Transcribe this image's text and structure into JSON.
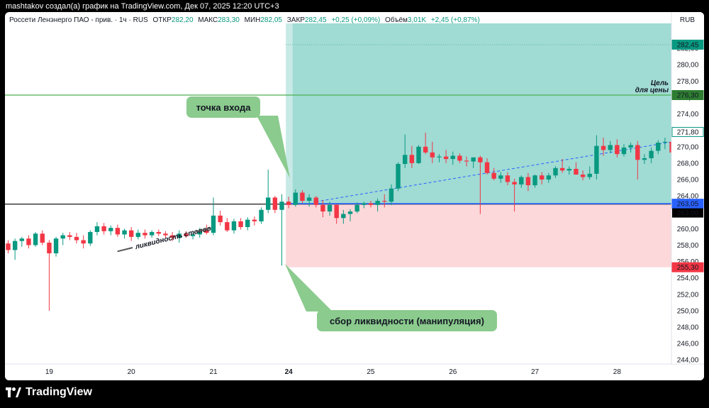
{
  "credit": "mashtakov создал(а) график на TradingView.com, Дек 07, 2025 12:20 UTC+3",
  "legend": {
    "instrument": "Россети Ленэнерго ПАО - прив. · 1ч · RUS",
    "open_label": "ОТКР",
    "open": "282,20",
    "high_label": "МАКС",
    "high": "283,30",
    "low_label": "МИН",
    "low": "282,05",
    "close_label": "ЗАКР",
    "close": "282,45",
    "change": "+0,25 (+0,09%)",
    "volume_label": "Объём",
    "volume": "3,01K",
    "vol_change": "+2,45 (+0,87%)"
  },
  "currency": "RUB",
  "logo_text": "TradingView",
  "colors": {
    "up": "#089981",
    "down": "#f23645",
    "profit_zone": "#a0dbd4",
    "loss_zone": "#fcd8da",
    "target_line": "#4caf50",
    "entry_line": "#2962ff",
    "callout": "#8bcb8e"
  },
  "chart_data": {
    "type": "candlestick",
    "ylim": [
      243.5,
      284
    ],
    "y_ticks": [
      "244,00",
      "246,00",
      "248,00",
      "250,00",
      "252,00",
      "254,00",
      "256,00",
      "258,00",
      "260,00",
      "262,00",
      "264,00",
      "266,00",
      "268,00",
      "270,00",
      "272,00",
      "274,00",
      "276,00",
      "278,00",
      "280,00",
      "282,00"
    ],
    "y_tick_values": [
      244,
      246,
      248,
      250,
      252,
      254,
      256,
      258,
      260,
      262,
      264,
      266,
      268,
      270,
      272,
      274,
      276,
      278,
      280,
      282
    ],
    "x_ticks": [
      {
        "label": "19",
        "index": 6
      },
      {
        "label": "20",
        "index": 18
      },
      {
        "label": "21",
        "index": 30
      },
      {
        "label": "24",
        "index": 41,
        "bold": true
      },
      {
        "label": "25",
        "index": 53
      },
      {
        "label": "26",
        "index": 65
      },
      {
        "label": "27",
        "index": 77
      },
      {
        "label": "28",
        "index": 89
      }
    ],
    "candles": [
      [
        258.2,
        258.6,
        257.0,
        257.4
      ],
      [
        257.4,
        258.8,
        256.2,
        258.5
      ],
      [
        258.5,
        259.0,
        257.8,
        258.8
      ],
      [
        258.8,
        259.2,
        257.6,
        258.0
      ],
      [
        258.0,
        259.6,
        257.8,
        259.4
      ],
      [
        259.4,
        259.8,
        258.0,
        258.3
      ],
      [
        258.3,
        258.6,
        250.0,
        257.0
      ],
      [
        257.0,
        259.0,
        256.6,
        258.8
      ],
      [
        258.8,
        259.5,
        258.0,
        259.2
      ],
      [
        259.2,
        259.6,
        258.6,
        259.0
      ],
      [
        259.0,
        259.5,
        258.2,
        258.6
      ],
      [
        258.6,
        259.2,
        257.6,
        258.2
      ],
      [
        258.2,
        259.8,
        257.9,
        259.6
      ],
      [
        259.6,
        260.8,
        259.2,
        260.3
      ],
      [
        260.3,
        260.7,
        259.3,
        259.7
      ],
      [
        259.7,
        260.4,
        259.2,
        260.1
      ],
      [
        260.1,
        260.5,
        259.0,
        259.3
      ],
      [
        259.3,
        260.0,
        258.8,
        259.8
      ],
      [
        259.8,
        260.2,
        258.5,
        259.0
      ],
      [
        259.0,
        259.9,
        258.7,
        259.5
      ],
      [
        259.5,
        259.9,
        258.8,
        259.2
      ],
      [
        259.2,
        259.8,
        258.9,
        259.6
      ],
      [
        259.6,
        259.9,
        259.1,
        259.4
      ],
      [
        259.4,
        259.7,
        258.9,
        259.2
      ],
      [
        259.2,
        259.6,
        258.5,
        258.9
      ],
      [
        258.9,
        259.8,
        258.3,
        259.4
      ],
      [
        259.4,
        259.7,
        258.9,
        259.1
      ],
      [
        259.1,
        259.5,
        258.7,
        259.3
      ],
      [
        259.3,
        260.1,
        258.9,
        259.8
      ],
      [
        259.8,
        260.5,
        259.3,
        259.5
      ],
      [
        259.5,
        263.8,
        259.2,
        261.6
      ],
      [
        261.6,
        262.2,
        260.4,
        260.8
      ],
      [
        260.8,
        261.3,
        259.6,
        259.8
      ],
      [
        259.8,
        261.2,
        259.4,
        260.9
      ],
      [
        260.9,
        261.3,
        259.9,
        260.2
      ],
      [
        260.2,
        261.4,
        259.8,
        261.1
      ],
      [
        261.1,
        261.5,
        260.4,
        260.9
      ],
      [
        260.9,
        262.6,
        260.6,
        262.3
      ],
      [
        262.3,
        267.2,
        261.9,
        263.8
      ],
      [
        263.8,
        264.0,
        261.9,
        262.3
      ],
      [
        262.3,
        264.2,
        255.5,
        263.3
      ],
      [
        263.3,
        263.9,
        262.5,
        262.9
      ],
      [
        262.9,
        264.8,
        262.7,
        264.4
      ],
      [
        264.4,
        264.7,
        263.1,
        263.4
      ],
      [
        263.4,
        264.2,
        262.7,
        263.8
      ],
      [
        263.8,
        264.0,
        262.6,
        262.9
      ],
      [
        262.9,
        263.5,
        261.4,
        262.1
      ],
      [
        262.1,
        263.3,
        261.6,
        262.9
      ],
      [
        262.9,
        263.0,
        260.6,
        261.3
      ],
      [
        261.3,
        262.3,
        260.6,
        261.8
      ],
      [
        261.8,
        262.4,
        260.9,
        262.1
      ],
      [
        262.1,
        263.2,
        261.9,
        262.9
      ],
      [
        262.9,
        263.3,
        262.5,
        263.1
      ],
      [
        263.1,
        263.4,
        262.6,
        262.9
      ],
      [
        262.9,
        263.7,
        262.1,
        263.4
      ],
      [
        263.4,
        264.2,
        262.6,
        263.3
      ],
      [
        263.3,
        265.4,
        262.9,
        264.9
      ],
      [
        264.9,
        268.1,
        264.6,
        267.9
      ],
      [
        267.9,
        271.5,
        267.4,
        269.0
      ],
      [
        269.0,
        270.1,
        267.4,
        268.0
      ],
      [
        268.0,
        270.2,
        267.9,
        270.0
      ],
      [
        270.0,
        271.7,
        269.1,
        269.3
      ],
      [
        269.3,
        270.6,
        268.0,
        268.7
      ],
      [
        268.7,
        269.1,
        268.1,
        268.8
      ],
      [
        268.8,
        269.6,
        268.0,
        268.5
      ],
      [
        268.5,
        269.4,
        267.8,
        268.9
      ],
      [
        268.9,
        269.2,
        268.0,
        268.3
      ],
      [
        268.3,
        268.8,
        267.6,
        268.2
      ],
      [
        268.2,
        268.7,
        267.4,
        268.7
      ],
      [
        268.7,
        268.9,
        261.8,
        268.1
      ],
      [
        268.1,
        268.6,
        266.6,
        266.8
      ],
      [
        266.8,
        267.4,
        265.9,
        266.1
      ],
      [
        266.1,
        266.9,
        265.6,
        266.5
      ],
      [
        266.5,
        266.9,
        265.3,
        265.7
      ],
      [
        265.7,
        266.1,
        262.1,
        265.4
      ],
      [
        265.4,
        266.5,
        265.0,
        266.3
      ],
      [
        266.3,
        266.8,
        264.6,
        265.3
      ],
      [
        265.3,
        266.6,
        265.0,
        266.5
      ],
      [
        266.5,
        266.9,
        265.4,
        266.0
      ],
      [
        266.0,
        266.8,
        265.6,
        266.5
      ],
      [
        266.5,
        267.6,
        266.2,
        267.4
      ],
      [
        267.4,
        268.5,
        266.8,
        267.1
      ],
      [
        267.1,
        267.6,
        266.6,
        267.3
      ],
      [
        267.3,
        268.1,
        266.7,
        266.6
      ],
      [
        266.6,
        267.1,
        265.9,
        266.3
      ],
      [
        266.3,
        267.6,
        266.0,
        266.7
      ],
      [
        266.7,
        271.4,
        266.0,
        270.1
      ],
      [
        270.1,
        271.1,
        268.9,
        269.6
      ],
      [
        269.6,
        270.7,
        269.2,
        270.2
      ],
      [
        270.2,
        270.9,
        268.7,
        269.1
      ],
      [
        269.1,
        270.3,
        268.8,
        269.9
      ],
      [
        269.9,
        270.5,
        269.3,
        270.2
      ],
      [
        270.2,
        270.7,
        266.0,
        268.4
      ],
      [
        268.4,
        269.1,
        267.9,
        268.6
      ],
      [
        268.6,
        269.9,
        268.0,
        269.5
      ],
      [
        269.5,
        270.8,
        269.1,
        270.5
      ],
      [
        270.5,
        271.1,
        269.7,
        270.6
      ],
      [
        270.6,
        271.0,
        269.1,
        269.3
      ],
      [
        269.3,
        270.1,
        268.8,
        269.7
      ],
      [
        269.7,
        271.8,
        269.3,
        271.5
      ],
      [
        271.5,
        271.8,
        270.7,
        271.1
      ],
      [
        271.1,
        271.4,
        270.5,
        270.9
      ],
      [
        270.9,
        272.2,
        270.4,
        271.8
      ]
    ],
    "levels": {
      "target": {
        "value": 276.3,
        "label": "276,30",
        "text1": "Цель",
        "text2": "для цены"
      },
      "position_top": {
        "value": 282.45,
        "label": "282,45"
      },
      "entry": {
        "value": 263.05,
        "label": "263,05"
      },
      "horizontal": {
        "value": 263.0,
        "label": "263,00"
      },
      "stop": {
        "value": 255.3,
        "label": "255,30"
      },
      "last": {
        "value": 271.8,
        "label": "271,80"
      }
    },
    "position_start_index": 41,
    "highlight_start_index": 42,
    "trend": {
      "from_index": 45,
      "from_value": 263.3,
      "to_index": 100,
      "to_value": 271.0
    },
    "annotations": {
      "entry_callout": "точка входа",
      "liquidity_callout": "сбор ликвидности (манипуляция)",
      "stops_label": "ликвидность стопов"
    }
  }
}
